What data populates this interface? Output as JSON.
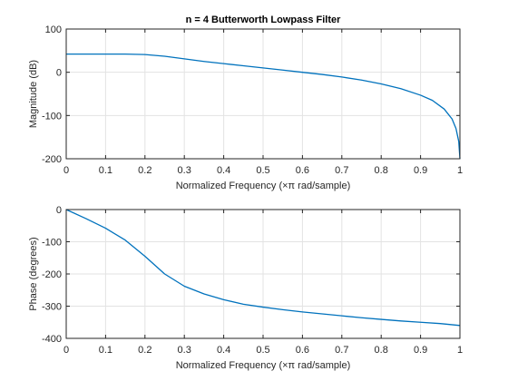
{
  "chart_data": [
    {
      "type": "line",
      "title": "n = 4 Butterworth Lowpass Filter",
      "xlabel": "Normalized Frequency  (×π rad/sample)",
      "ylabel": "Magnitude (dB)",
      "xlim": [
        0,
        1
      ],
      "ylim": [
        -200,
        100
      ],
      "xticks": [
        "0",
        "0.1",
        "0.2",
        "0.3",
        "0.4",
        "0.5",
        "0.6",
        "0.7",
        "0.8",
        "0.9",
        "1"
      ],
      "xtick_values": [
        0,
        0.1,
        0.2,
        0.3,
        0.4,
        0.5,
        0.6,
        0.7,
        0.8,
        0.9,
        1
      ],
      "yticks": [
        "100",
        "0",
        "-100",
        "-200"
      ],
      "ytick_values": [
        100,
        0,
        -100,
        -200
      ],
      "grid": true,
      "series": [
        {
          "color": "#0072bd",
          "x": [
            0,
            0.05,
            0.1,
            0.15,
            0.2,
            0.25,
            0.3,
            0.35,
            0.4,
            0.45,
            0.5,
            0.55,
            0.6,
            0.65,
            0.7,
            0.75,
            0.8,
            0.85,
            0.9,
            0.93,
            0.96,
            0.98,
            0.99,
            0.997,
            1.0
          ],
          "y": [
            42,
            42,
            42,
            42,
            41,
            37,
            31,
            25,
            20,
            15,
            10,
            5,
            0,
            -5,
            -11,
            -18,
            -27,
            -38,
            -53,
            -65,
            -85,
            -108,
            -130,
            -160,
            -200
          ]
        }
      ]
    },
    {
      "type": "line",
      "title": "",
      "xlabel": "Normalized Frequency  (×π rad/sample)",
      "ylabel": "Phase (degrees)",
      "xlim": [
        0,
        1
      ],
      "ylim": [
        -400,
        0
      ],
      "xticks": [
        "0",
        "0.1",
        "0.2",
        "0.3",
        "0.4",
        "0.5",
        "0.6",
        "0.7",
        "0.8",
        "0.9",
        "1"
      ],
      "xtick_values": [
        0,
        0.1,
        0.2,
        0.3,
        0.4,
        0.5,
        0.6,
        0.7,
        0.8,
        0.9,
        1
      ],
      "yticks": [
        "0",
        "-100",
        "-200",
        "-300",
        "-400"
      ],
      "ytick_values": [
        0,
        -100,
        -200,
        -300,
        -400
      ],
      "grid": true,
      "series": [
        {
          "color": "#0072bd",
          "x": [
            0,
            0.05,
            0.1,
            0.15,
            0.2,
            0.25,
            0.3,
            0.35,
            0.4,
            0.45,
            0.5,
            0.55,
            0.6,
            0.65,
            0.7,
            0.75,
            0.8,
            0.85,
            0.9,
            0.95,
            1.0
          ],
          "y": [
            0,
            -28,
            -58,
            -95,
            -145,
            -200,
            -238,
            -262,
            -280,
            -294,
            -303,
            -311,
            -318,
            -324,
            -330,
            -336,
            -341,
            -346,
            -350,
            -354,
            -360
          ]
        }
      ]
    }
  ]
}
